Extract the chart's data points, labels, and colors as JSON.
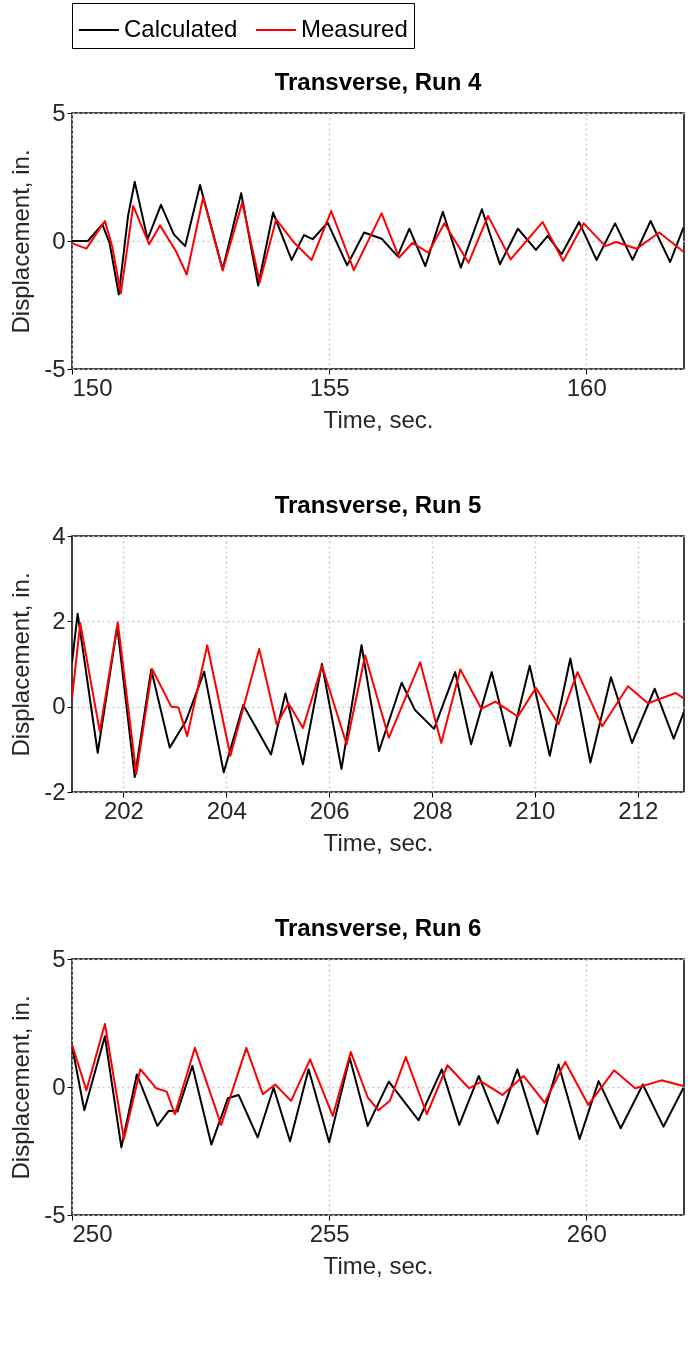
{
  "chart_data": [
    {
      "type": "line",
      "title": "Transverse, Run 4",
      "xlabel": "Time, sec.",
      "ylabel": "Displacement, in.",
      "xlim": [
        150,
        161.9
      ],
      "xticks": [
        150,
        155,
        160
      ],
      "ylim": [
        -5,
        5
      ],
      "yticks": [
        -5,
        0,
        5
      ],
      "grid": true,
      "legend": "top",
      "line_style": "solid",
      "series": [
        {
          "name": "Calculated",
          "color": "#000000",
          "x": [
            150,
            150.31,
            150.59,
            150.73,
            150.91,
            151.09,
            151.22,
            151.47,
            151.73,
            151.98,
            152.2,
            152.49,
            152.93,
            153.29,
            153.62,
            153.91,
            154.27,
            154.51,
            154.68,
            154.97,
            155.35,
            155.68,
            156.02,
            156.33,
            156.56,
            156.87,
            157.21,
            157.56,
            157.97,
            158.32,
            158.67,
            159.02,
            159.25,
            159.52,
            159.86,
            160.2,
            160.56,
            160.9,
            161.25,
            161.63,
            161.89
          ],
          "values": [
            0,
            0,
            0.65,
            -0.07,
            -2.09,
            0.98,
            2.31,
            0.07,
            1.41,
            0.26,
            -0.2,
            2.19,
            -1.11,
            1.87,
            -1.74,
            1.11,
            -0.74,
            0.23,
            0.07,
            0.72,
            -0.95,
            0.33,
            0.09,
            -0.59,
            0.48,
            -0.98,
            1.14,
            -1.04,
            1.24,
            -0.91,
            0.48,
            -0.35,
            0.2,
            -0.52,
            0.74,
            -0.74,
            0.69,
            -0.74,
            0.78,
            -0.82,
            0.52
          ]
        },
        {
          "name": "Measured",
          "color": "#ff0000",
          "x": [
            150,
            150.28,
            150.64,
            150.78,
            150.95,
            151.19,
            151.5,
            151.71,
            152.02,
            152.23,
            152.55,
            152.93,
            153.31,
            153.65,
            153.97,
            154.32,
            154.66,
            155.04,
            155.48,
            156.02,
            156.36,
            156.62,
            156.93,
            157.24,
            157.71,
            158.09,
            158.53,
            159.15,
            159.55,
            159.95,
            160.37,
            160.58,
            160.98,
            161.42,
            161.89
          ],
          "values": [
            -0.09,
            -0.3,
            0.78,
            -0.2,
            -2.05,
            1.37,
            -0.13,
            0.61,
            -0.39,
            -1.31,
            1.7,
            -1.15,
            1.5,
            -1.61,
            0.85,
            -0.07,
            -0.74,
            1.17,
            -1.14,
            1.08,
            -0.65,
            -0.07,
            -0.46,
            0.69,
            -0.85,
            0.98,
            -0.72,
            0.74,
            -0.78,
            0.69,
            -0.2,
            -0.04,
            -0.3,
            0.33,
            -0.42
          ]
        }
      ]
    },
    {
      "type": "line",
      "title": "Transverse, Run 5",
      "xlabel": "Time, sec.",
      "ylabel": "Displacement, in.",
      "xlim": [
        201,
        212.9
      ],
      "xticks": [
        202,
        204,
        206,
        208,
        210,
        212
      ],
      "ylim": [
        -2,
        4
      ],
      "yticks": [
        -2,
        0,
        2,
        4
      ],
      "grid": true,
      "line_style": "solid",
      "series": [
        {
          "name": "Calculated",
          "color": "#000000",
          "x": [
            201.0,
            201.11,
            201.5,
            201.88,
            202.22,
            202.54,
            202.9,
            203.21,
            203.57,
            203.95,
            204.33,
            204.87,
            205.15,
            205.49,
            205.86,
            206.24,
            206.63,
            206.97,
            207.41,
            207.67,
            208.04,
            208.45,
            208.76,
            209.16,
            209.52,
            209.9,
            210.29,
            210.69,
            211.08,
            211.48,
            211.89,
            212.33,
            212.7,
            212.9
          ],
          "values": [
            1.04,
            2.18,
            -1.08,
            1.88,
            -1.65,
            0.87,
            -0.96,
            -0.35,
            0.82,
            -1.54,
            0.04,
            -1.12,
            0.31,
            -1.35,
            1.0,
            -1.46,
            1.44,
            -1.04,
            0.56,
            -0.08,
            -0.52,
            0.81,
            -0.88,
            0.81,
            -0.92,
            0.96,
            -1.15,
            1.13,
            -1.31,
            0.69,
            -0.85,
            0.42,
            -0.75,
            -0.12
          ]
        },
        {
          "name": "Measured",
          "color": "#ff0000",
          "x": [
            201.0,
            201.16,
            201.54,
            201.89,
            202.25,
            202.56,
            202.93,
            203.07,
            203.24,
            203.63,
            204.08,
            204.64,
            204.98,
            205.21,
            205.49,
            205.86,
            206.34,
            206.7,
            207.16,
            207.77,
            208.18,
            208.55,
            208.96,
            209.23,
            209.67,
            210.02,
            210.46,
            210.83,
            211.31,
            211.81,
            212.2,
            212.74,
            212.9
          ],
          "values": [
            0.19,
            1.96,
            -0.58,
            1.98,
            -1.58,
            0.88,
            0,
            -0.02,
            -0.69,
            1.44,
            -1.15,
            1.35,
            -0.42,
            0.08,
            -0.5,
            0.96,
            -0.88,
            1.2,
            -0.73,
            1.04,
            -0.85,
            0.87,
            -0.05,
            0.12,
            -0.23,
            0.44,
            -0.41,
            0.81,
            -0.46,
            0.48,
            0.08,
            0.32,
            0.19
          ]
        }
      ]
    },
    {
      "type": "line",
      "title": "Transverse, Run 6",
      "xlabel": "Time, sec.",
      "ylabel": "Displacement, in.",
      "xlim": [
        250,
        261.9
      ],
      "xticks": [
        250,
        255,
        260
      ],
      "ylim": [
        -5,
        5
      ],
      "yticks": [
        -5,
        0,
        5
      ],
      "grid": true,
      "line_style": "solid",
      "series": [
        {
          "name": "Calculated",
          "color": "#000000",
          "x": [
            250,
            250.24,
            250.64,
            250.96,
            251.26,
            251.66,
            251.88,
            252.05,
            252.34,
            252.71,
            253.03,
            253.24,
            253.61,
            253.92,
            254.24,
            254.6,
            255.0,
            255.4,
            255.75,
            256.16,
            256.74,
            257.19,
            257.53,
            257.91,
            258.28,
            258.66,
            259.05,
            259.46,
            259.87,
            260.24,
            260.67,
            261.1,
            261.5,
            261.89
          ],
          "values": [
            1.59,
            -0.91,
            1.98,
            -2.36,
            0.49,
            -1.52,
            -0.93,
            -0.96,
            0.82,
            -2.25,
            -0.44,
            -0.31,
            -1.97,
            -0.03,
            -2.12,
            0.69,
            -2.16,
            1.14,
            -1.52,
            0.21,
            -1.3,
            0.69,
            -1.48,
            0.43,
            -1.42,
            0.69,
            -1.84,
            0.88,
            -2.03,
            0.23,
            -1.61,
            0.1,
            -1.55,
            -0.03
          ]
        },
        {
          "name": "Measured",
          "color": "#ff0000",
          "x": [
            250,
            250.28,
            250.64,
            251.01,
            251.33,
            251.64,
            251.84,
            252.0,
            252.39,
            252.9,
            253.39,
            253.71,
            253.95,
            254.26,
            254.63,
            255.07,
            255.42,
            255.75,
            255.96,
            256.18,
            256.49,
            256.9,
            257.3,
            257.72,
            257.96,
            258.37,
            258.78,
            259.19,
            259.59,
            260.04,
            260.54,
            260.95,
            261.46,
            261.89
          ],
          "values": [
            1.66,
            -0.13,
            2.46,
            -2.03,
            0.69,
            -0.05,
            -0.18,
            -1.06,
            1.53,
            -1.48,
            1.53,
            -0.28,
            0.1,
            -0.54,
            1.08,
            -1.13,
            1.37,
            -0.41,
            -0.91,
            -0.54,
            1.17,
            -1.06,
            0.85,
            -0.05,
            0.21,
            -0.31,
            0.43,
            -0.61,
            0.98,
            -0.7,
            0.65,
            -0.05,
            0.26,
            0.04
          ]
        }
      ]
    }
  ]
}
